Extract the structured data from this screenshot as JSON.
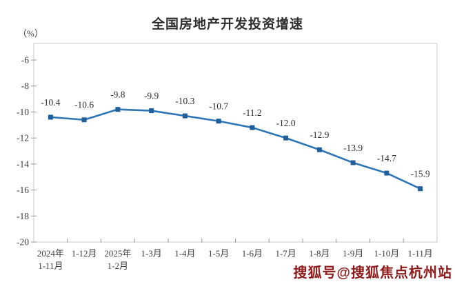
{
  "watermark": "搜狐号@搜狐焦点杭州站",
  "colors": {
    "line": "#2e75b6",
    "marker": "#215f9a",
    "border": "#c9c9c9",
    "tick": "#9a9a9a",
    "axis_text": "#3d3d3d",
    "title_text": "#2d2d2d",
    "watermark_text": "#8e1a1a",
    "background": "#ffffff"
  },
  "chart_data": {
    "type": "line",
    "title": "全国房地产开发投资增速",
    "unit_label": "（%）",
    "categories": [
      [
        "2024年",
        "1-11月"
      ],
      [
        "1-12月"
      ],
      [
        "2025年",
        "1-2月"
      ],
      [
        "1-3月"
      ],
      [
        "1-4月"
      ],
      [
        "1-5月"
      ],
      [
        "1-6月"
      ],
      [
        "1-7月"
      ],
      [
        "1-8月"
      ],
      [
        "1-9月"
      ],
      [
        "1-10月"
      ],
      [
        "1-11月"
      ]
    ],
    "values": [
      -10.4,
      -10.6,
      -9.8,
      -9.9,
      -10.3,
      -10.7,
      -11.2,
      -12.0,
      -12.9,
      -13.9,
      -14.7,
      -15.9
    ],
    "data_labels": [
      "-10.4",
      "-10.6",
      "-9.8",
      "-9.9",
      "-10.3",
      "-10.7",
      "-11.2",
      "-12.0",
      "-12.9",
      "-13.9",
      "-14.7",
      "-15.9"
    ],
    "yticks": [
      -6,
      -8,
      -10,
      -12,
      -14,
      -16,
      -18,
      -20
    ],
    "ylim": [
      -20,
      -4.7
    ],
    "grid": false,
    "legend": "none",
    "marker_shape": "square"
  }
}
